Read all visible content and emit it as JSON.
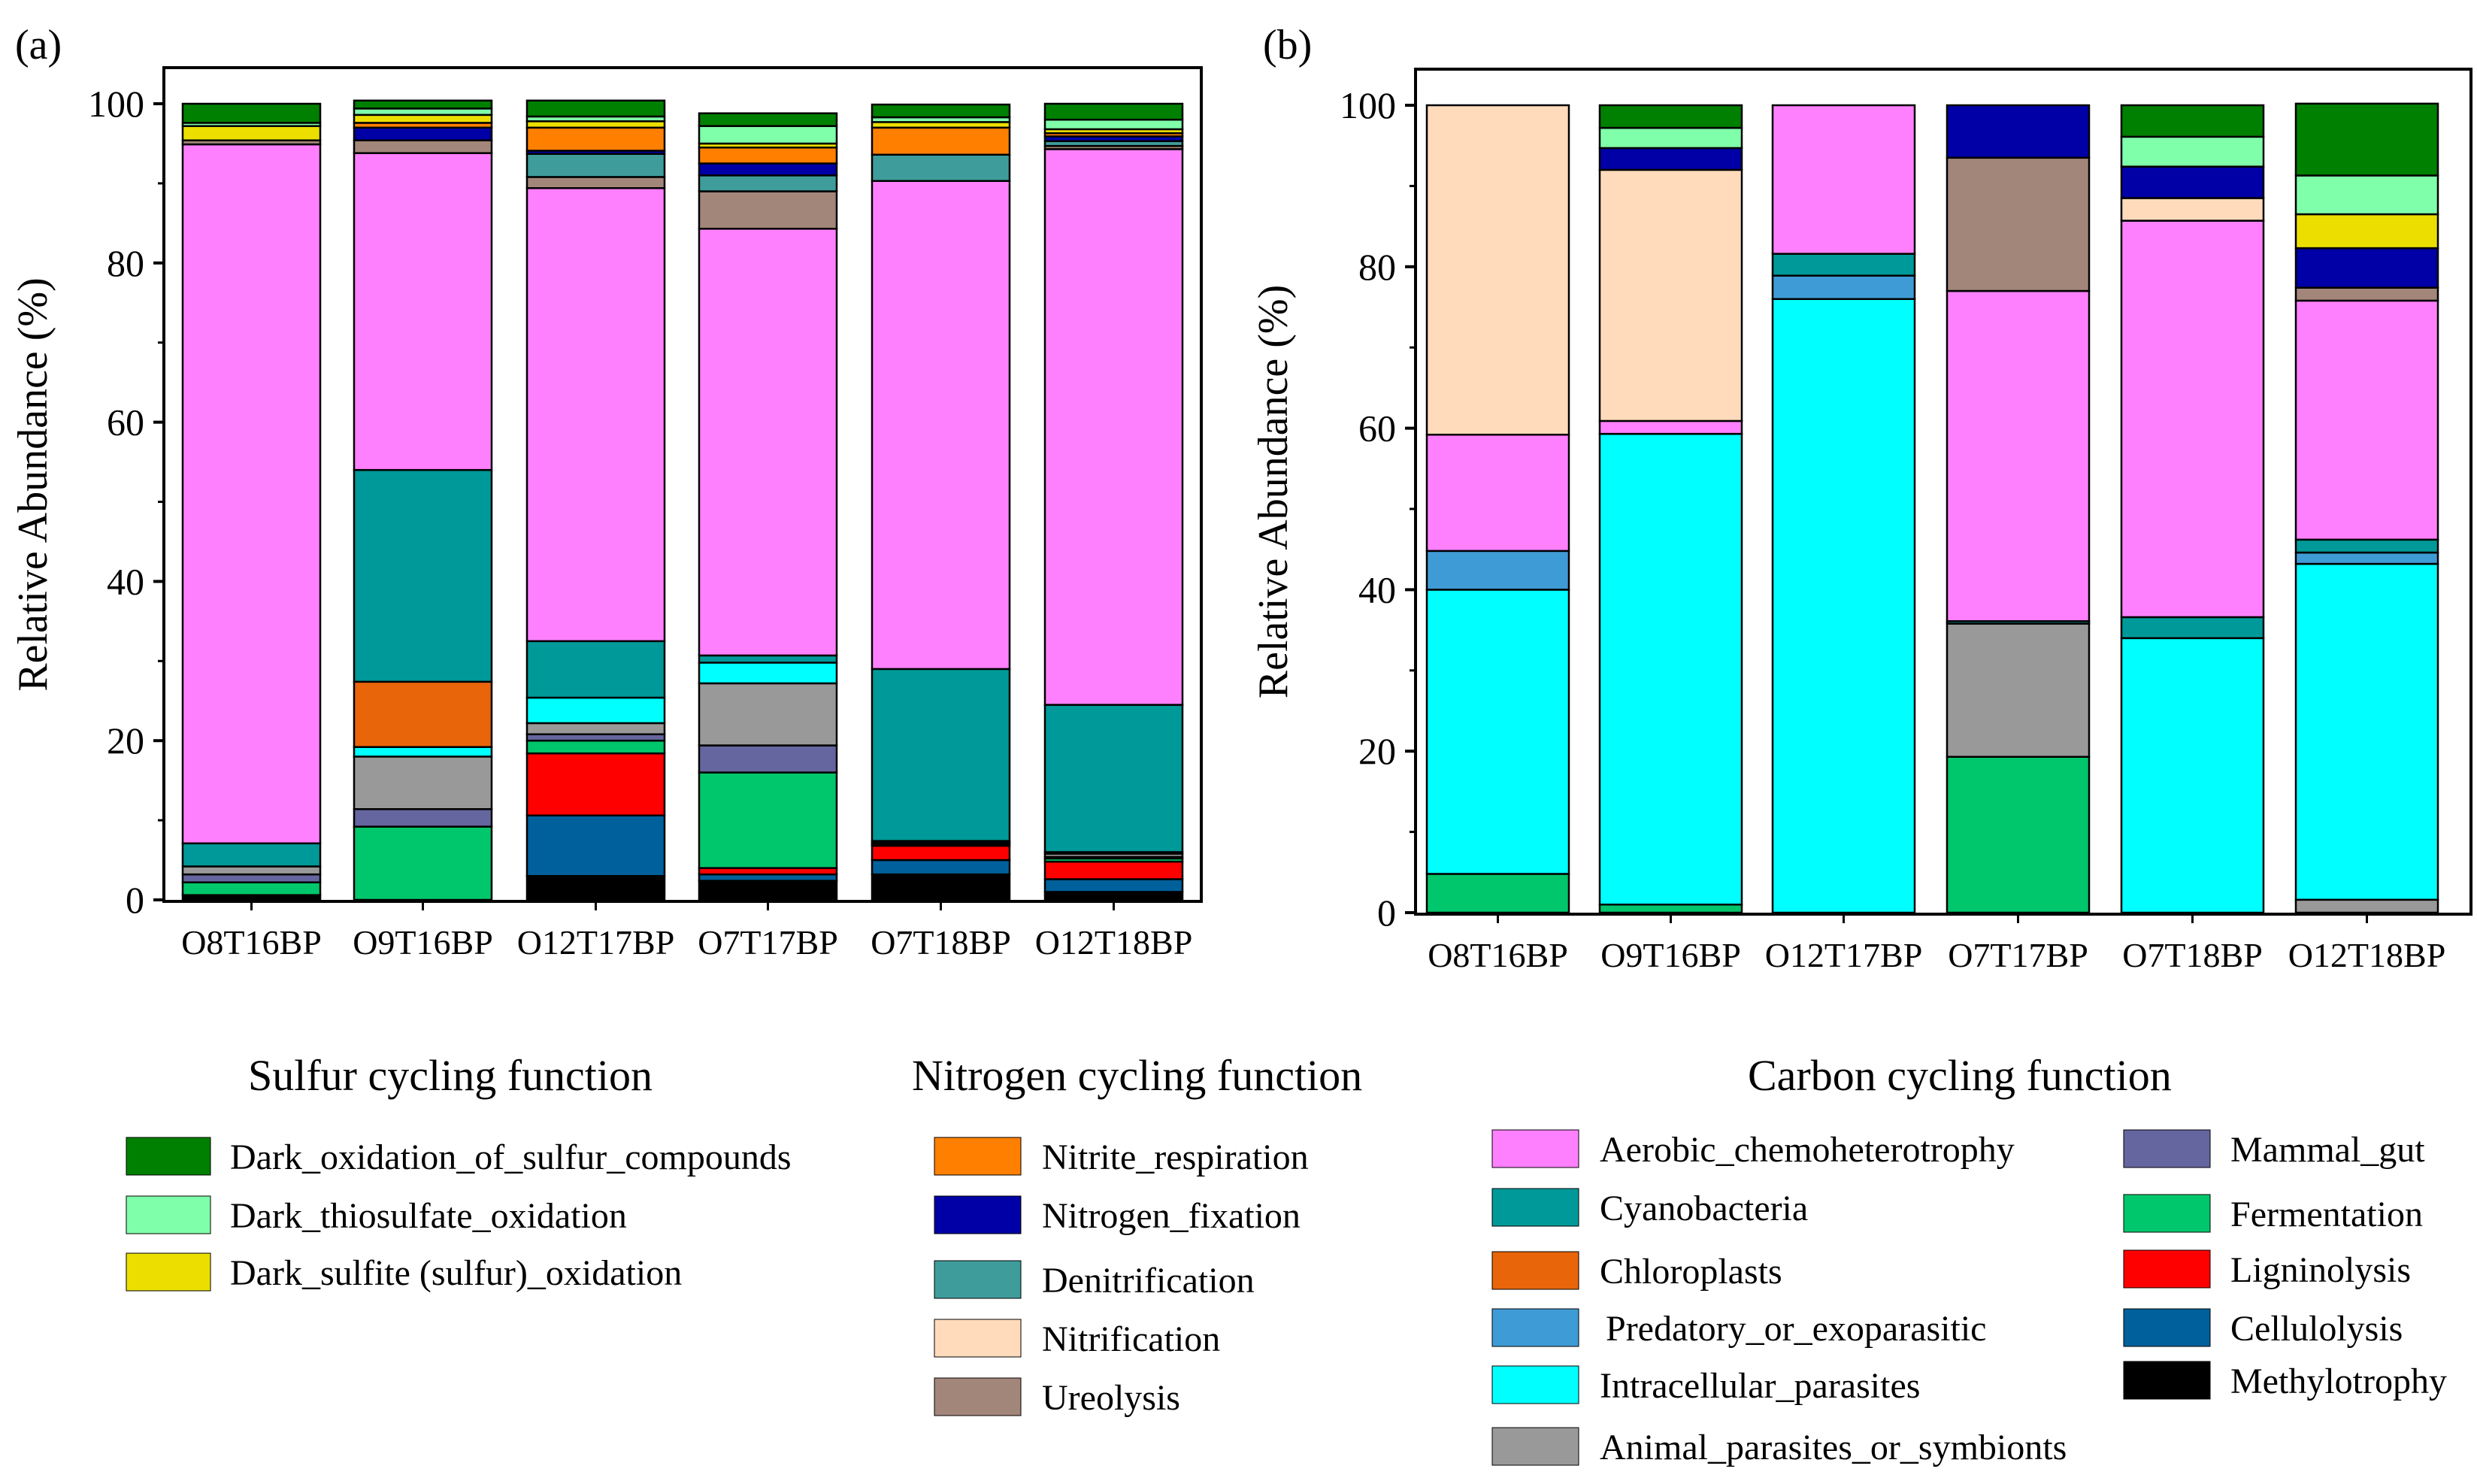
{
  "colors": {
    "Aerobic_chemoheterotrophy": "#ff80ff",
    "Cyanobacteria": "#009999",
    "Chloroplasts": "#e8650a",
    "Predatory_or_exoparasitic": "#3f9bd6",
    "Intracellular_parasites": "#00ffff",
    "Animal_parasites_or_symbionts": "#999999",
    "Mammal_gut": "#65659f",
    "Fermentation": "#00c76b",
    "Ligninolysis": "#ff0000",
    "Cellulolysis": "#00609c",
    "Methylotrophy": "#000000",
    "Dark_oxidation_of_sulfur_compounds": "#008000",
    "Dark_thiosulfate_oxidation": "#80ffaa",
    "Dark_sulfite (sulfur)_oxidation": "#ecdf00",
    "Nitrite_respiration": "#ff8000",
    "Nitrogen_fixation": "#0000a6",
    "Denitrification": "#3e9d9b",
    "Nitrification": "#ffdbbb",
    "Ureolysis": "#a3867a"
  },
  "chart_data": [
    {
      "type": "bar",
      "stacked": true,
      "panel_label": "(a)",
      "ylabel": "Relative Abundance (%)",
      "ylim": [
        0,
        100
      ],
      "yticks": [
        "0",
        "20",
        "40",
        "60",
        "80",
        "100"
      ],
      "categories": [
        "O8T16BP",
        "O9T16BP",
        "O12T17BP",
        "O7T17BP",
        "O7T18BP",
        "O12T18BP"
      ],
      "series": [
        {
          "name": "Methylotrophy",
          "values": [
            0.6,
            0,
            3.0,
            2.4,
            3.2,
            1.0
          ]
        },
        {
          "name": "Cellulolysis",
          "values": [
            0,
            0,
            7.6,
            0.8,
            1.8,
            1.6
          ]
        },
        {
          "name": "Ligninolysis",
          "values": [
            0,
            0,
            7.8,
            0.8,
            1.8,
            2.2
          ]
        },
        {
          "name": "Fermentation",
          "values": [
            1.6,
            9.2,
            1.6,
            12.0,
            0.2,
            0.4
          ]
        },
        {
          "name": "Mammal_gut",
          "values": [
            1.0,
            2.2,
            0.8,
            3.4,
            0.2,
            0.2
          ]
        },
        {
          "name": "Animal_parasites_or_symbionts",
          "values": [
            1.0,
            6.6,
            1.4,
            7.8,
            0.2,
            0.4
          ]
        },
        {
          "name": "Intracellular_parasites",
          "values": [
            0,
            1.2,
            3.2,
            2.6,
            0,
            0
          ]
        },
        {
          "name": "Predatory_or_exoparasitic",
          "values": [
            0,
            0,
            0,
            0,
            0,
            0.2
          ]
        },
        {
          "name": "Chloroplasts",
          "values": [
            0,
            8.2,
            0,
            0,
            0,
            0
          ]
        },
        {
          "name": "Cyanobacteria",
          "values": [
            2.9,
            26.6,
            7.1,
            0.9,
            21.6,
            18.5
          ]
        },
        {
          "name": "Aerobic_chemoheterotrophy",
          "values": [
            87.8,
            39.8,
            56.9,
            53.6,
            61.3,
            69.8
          ]
        },
        {
          "name": "Ureolysis",
          "values": [
            0.5,
            1.6,
            1.4,
            4.7,
            0,
            0.4
          ]
        },
        {
          "name": "Nitrification",
          "values": [
            0,
            0,
            0,
            0,
            0,
            0
          ]
        },
        {
          "name": "Denitrification",
          "values": [
            0,
            0,
            2.9,
            2.0,
            3.3,
            0.6
          ]
        },
        {
          "name": "Nitrogen_fixation",
          "values": [
            0,
            1.6,
            0.4,
            1.5,
            0,
            0.6
          ]
        },
        {
          "name": "Nitrite_respiration",
          "values": [
            0,
            0.6,
            2.9,
            2.0,
            3.4,
            0.4
          ]
        },
        {
          "name": "Dark_sulfite (sulfur)_oxidation",
          "values": [
            1.8,
            1.0,
            0.8,
            0.5,
            0.7,
            0.5
          ]
        },
        {
          "name": "Dark_thiosulfate_oxidation",
          "values": [
            0.4,
            0.8,
            0.6,
            2.2,
            0.6,
            1.2
          ]
        },
        {
          "name": "Dark_oxidation_of_sulfur_compounds",
          "values": [
            2.4,
            1.0,
            2.0,
            1.6,
            1.6,
            2.0
          ]
        }
      ]
    },
    {
      "type": "bar",
      "stacked": true,
      "panel_label": "(b)",
      "ylabel": "Relative Abundance (%)",
      "ylim": [
        0,
        100
      ],
      "yticks": [
        "0",
        "20",
        "40",
        "60",
        "80",
        "100"
      ],
      "categories": [
        "O8T16BP",
        "O9T16BP",
        "O12T17BP",
        "O7T17BP",
        "O7T18BP",
        "O12T18BP"
      ],
      "series": [
        {
          "name": "Animal_parasites_or_symbionts",
          "values": [
            0,
            0,
            0,
            0,
            0,
            1.6
          ]
        },
        {
          "name": "Fermentation",
          "values": [
            4.8,
            1.0,
            0,
            19.3,
            0,
            0
          ]
        },
        {
          "name": "Intracellular_parasites",
          "values": [
            35.2,
            58.3,
            76.0,
            0,
            34.0,
            41.6
          ]
        },
        {
          "name": "Predatory_or_exoparasitic",
          "values": [
            4.8,
            0,
            2.9,
            0,
            0,
            1.4
          ]
        },
        {
          "name": "Animal_parasites_or_symbionts",
          "values": [
            0,
            0,
            0,
            16.5,
            0,
            0
          ]
        },
        {
          "name": "Cyanobacteria",
          "values": [
            0,
            0,
            2.7,
            0.3,
            2.6,
            1.6
          ]
        },
        {
          "name": "Aerobic_chemoheterotrophy",
          "values": [
            14.4,
            1.6,
            18.4,
            40.9,
            49.1,
            29.6
          ]
        },
        {
          "name": "Ureolysis",
          "values": [
            0,
            0,
            0,
            16.5,
            0,
            1.6
          ]
        },
        {
          "name": "Nitrification",
          "values": [
            40.8,
            31.1,
            0,
            0,
            2.8,
            0
          ]
        },
        {
          "name": "Nitrogen_fixation",
          "values": [
            0,
            2.7,
            0,
            6.5,
            3.9,
            4.9
          ]
        },
        {
          "name": "Dark_sulfite (sulfur)_oxidation",
          "values": [
            0,
            0,
            0,
            0,
            0,
            4.2
          ]
        },
        {
          "name": "Dark_thiosulfate_oxidation",
          "values": [
            0,
            2.5,
            0,
            0,
            3.7,
            4.8
          ]
        },
        {
          "name": "Dark_oxidation_of_sulfur_compounds",
          "values": [
            0,
            2.8,
            0,
            0,
            3.9,
            8.9
          ]
        }
      ]
    }
  ],
  "legend": {
    "sulfur": {
      "title": "Sulfur cycling function",
      "items": [
        "Dark_oxidation_of_sulfur_compounds",
        "Dark_thiosulfate_oxidation",
        "Dark_sulfite (sulfur)_oxidation"
      ]
    },
    "nitrogen": {
      "title": "Nitrogen cycling function",
      "items": [
        "Nitrite_respiration",
        "Nitrogen_fixation",
        "Denitrification",
        "Nitrification",
        "Ureolysis"
      ]
    },
    "carbon": {
      "title": "Carbon cycling function",
      "col1": [
        "Aerobic_chemoheterotrophy",
        "Cyanobacteria",
        "Chloroplasts",
        "Predatory_or_exoparasitic",
        "Intracellular_parasites",
        "Animal_parasites_or_symbionts"
      ],
      "col2": [
        "Mammal_gut",
        "Fermentation",
        "Ligninolysis",
        "Cellulolysis",
        "Methylotrophy"
      ]
    }
  }
}
